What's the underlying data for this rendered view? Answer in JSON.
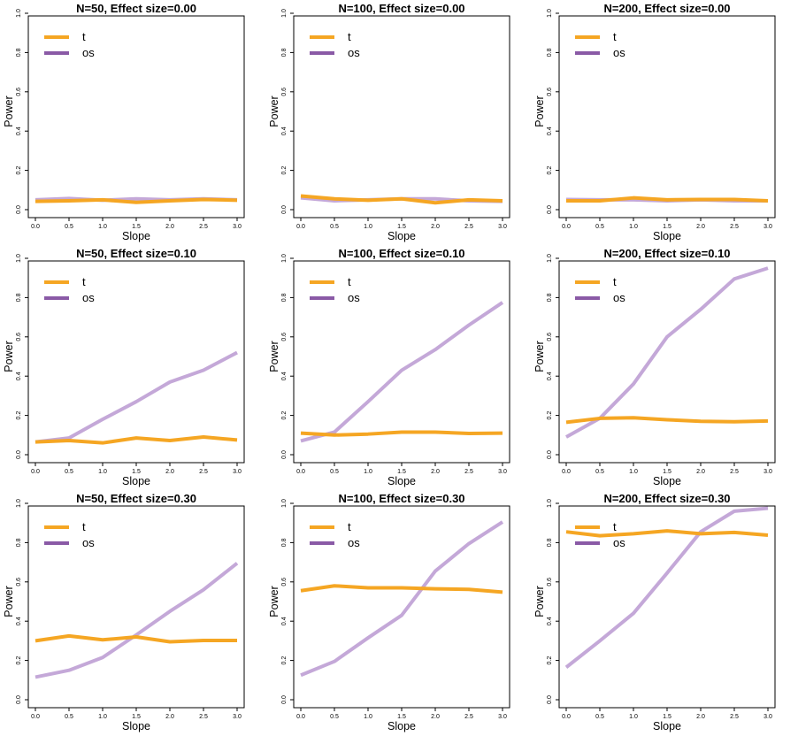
{
  "colors": {
    "t": "#f5a623",
    "os": "#c4a8d8",
    "os_legend": "#8a5aa6"
  },
  "chart_data": [
    {
      "type": "line",
      "title": "N=50, Effect size=0.00",
      "xlabel": "Slope",
      "ylabel": "Power",
      "xlim": [
        0,
        3
      ],
      "ylim": [
        0,
        1
      ],
      "xticks": [
        "0.0",
        "0.5",
        "1.0",
        "1.5",
        "2.0",
        "2.5",
        "3.0"
      ],
      "yticks": [
        "0.0",
        "0.2",
        "0.4",
        "0.6",
        "0.8",
        "1.0"
      ],
      "x": [
        0,
        0.5,
        1,
        1.5,
        2,
        2.5,
        3
      ],
      "legend_position": "top-left",
      "series": [
        {
          "name": "t",
          "values": [
            0.042,
            0.045,
            0.05,
            0.037,
            0.045,
            0.052,
            0.048
          ]
        },
        {
          "name": "os",
          "values": [
            0.05,
            0.057,
            0.048,
            0.055,
            0.05,
            0.055,
            0.05
          ]
        }
      ]
    },
    {
      "type": "line",
      "title": "N=100, Effect size=0.00",
      "xlabel": "Slope",
      "ylabel": "Power",
      "xlim": [
        0,
        3
      ],
      "ylim": [
        0,
        1
      ],
      "xticks": [
        "0.0",
        "0.5",
        "1.0",
        "1.5",
        "2.0",
        "2.5",
        "3.0"
      ],
      "yticks": [
        "0.0",
        "0.2",
        "0.4",
        "0.6",
        "0.8",
        "1.0"
      ],
      "x": [
        0,
        0.5,
        1,
        1.5,
        2,
        2.5,
        3
      ],
      "legend_position": "top-left",
      "series": [
        {
          "name": "t",
          "values": [
            0.07,
            0.055,
            0.048,
            0.055,
            0.035,
            0.05,
            0.045
          ]
        },
        {
          "name": "os",
          "values": [
            0.06,
            0.045,
            0.05,
            0.055,
            0.055,
            0.045,
            0.042
          ]
        }
      ]
    },
    {
      "type": "line",
      "title": "N=200, Effect size=0.00",
      "xlabel": "Slope",
      "ylabel": "Power",
      "xlim": [
        0,
        3
      ],
      "ylim": [
        0,
        1
      ],
      "xticks": [
        "0.0",
        "0.5",
        "1.0",
        "1.5",
        "2.0",
        "2.5",
        "3.0"
      ],
      "yticks": [
        "0.0",
        "0.2",
        "0.4",
        "0.6",
        "0.8",
        "1.0"
      ],
      "x": [
        0,
        0.5,
        1,
        1.5,
        2,
        2.5,
        3
      ],
      "legend_position": "top-left",
      "series": [
        {
          "name": "t",
          "values": [
            0.045,
            0.045,
            0.06,
            0.05,
            0.052,
            0.052,
            0.045
          ]
        },
        {
          "name": "os",
          "values": [
            0.052,
            0.05,
            0.05,
            0.045,
            0.05,
            0.045,
            0.045
          ]
        }
      ]
    },
    {
      "type": "line",
      "title": "N=50, Effect size=0.10",
      "xlabel": "Slope",
      "ylabel": "Power",
      "xlim": [
        0,
        3
      ],
      "ylim": [
        0,
        1
      ],
      "xticks": [
        "0.0",
        "0.5",
        "1.0",
        "1.5",
        "2.0",
        "2.5",
        "3.0"
      ],
      "yticks": [
        "0.0",
        "0.2",
        "0.4",
        "0.6",
        "0.8",
        "1.0"
      ],
      "x": [
        0,
        0.5,
        1,
        1.5,
        2,
        2.5,
        3
      ],
      "legend_position": "top-left",
      "series": [
        {
          "name": "t",
          "values": [
            0.065,
            0.072,
            0.06,
            0.085,
            0.072,
            0.09,
            0.075
          ]
        },
        {
          "name": "os",
          "values": [
            0.065,
            0.085,
            0.18,
            0.27,
            0.37,
            0.43,
            0.52
          ]
        }
      ]
    },
    {
      "type": "line",
      "title": "N=100, Effect size=0.10",
      "xlabel": "Slope",
      "ylabel": "Power",
      "xlim": [
        0,
        3
      ],
      "ylim": [
        0,
        1
      ],
      "xticks": [
        "0.0",
        "0.5",
        "1.0",
        "1.5",
        "2.0",
        "2.5",
        "3.0"
      ],
      "yticks": [
        "0.0",
        "0.2",
        "0.4",
        "0.6",
        "0.8",
        "1.0"
      ],
      "x": [
        0,
        0.5,
        1,
        1.5,
        2,
        2.5,
        3
      ],
      "legend_position": "top-left",
      "series": [
        {
          "name": "t",
          "values": [
            0.11,
            0.1,
            0.105,
            0.115,
            0.115,
            0.108,
            0.11
          ]
        },
        {
          "name": "os",
          "values": [
            0.07,
            0.115,
            0.27,
            0.43,
            0.535,
            0.66,
            0.775
          ]
        }
      ]
    },
    {
      "type": "line",
      "title": "N=200, Effect size=0.10",
      "xlabel": "Slope",
      "ylabel": "Power",
      "xlim": [
        0,
        3
      ],
      "ylim": [
        0,
        1
      ],
      "xticks": [
        "0.0",
        "0.5",
        "1.0",
        "1.5",
        "2.0",
        "2.5",
        "3.0"
      ],
      "yticks": [
        "0.0",
        "0.2",
        "0.4",
        "0.6",
        "0.8",
        "1.0"
      ],
      "x": [
        0,
        0.5,
        1,
        1.5,
        2,
        2.5,
        3
      ],
      "legend_position": "top-left",
      "series": [
        {
          "name": "t",
          "values": [
            0.165,
            0.185,
            0.188,
            0.178,
            0.17,
            0.168,
            0.172
          ]
        },
        {
          "name": "os",
          "values": [
            0.09,
            0.185,
            0.36,
            0.6,
            0.74,
            0.895,
            0.95
          ]
        }
      ]
    },
    {
      "type": "line",
      "title": "N=50, Effect size=0.30",
      "xlabel": "Slope",
      "ylabel": "Power",
      "xlim": [
        0,
        3
      ],
      "ylim": [
        0,
        1
      ],
      "xticks": [
        "0.0",
        "0.5",
        "1.0",
        "1.5",
        "2.0",
        "2.5",
        "3.0"
      ],
      "yticks": [
        "0.0",
        "0.2",
        "0.4",
        "0.6",
        "0.8",
        "1.0"
      ],
      "x": [
        0,
        0.5,
        1,
        1.5,
        2,
        2.5,
        3
      ],
      "legend_position": "top-left",
      "series": [
        {
          "name": "t",
          "values": [
            0.3,
            0.325,
            0.305,
            0.32,
            0.295,
            0.302,
            0.302
          ]
        },
        {
          "name": "os",
          "values": [
            0.115,
            0.15,
            0.215,
            0.33,
            0.45,
            0.56,
            0.695
          ]
        }
      ]
    },
    {
      "type": "line",
      "title": "N=100, Effect size=0.30",
      "xlabel": "Slope",
      "ylabel": "Power",
      "xlim": [
        0,
        3
      ],
      "ylim": [
        0,
        1
      ],
      "xticks": [
        "0.0",
        "0.5",
        "1.0",
        "1.5",
        "2.0",
        "2.5",
        "3.0"
      ],
      "yticks": [
        "0.0",
        "0.2",
        "0.4",
        "0.6",
        "0.8",
        "1.0"
      ],
      "x": [
        0,
        0.5,
        1,
        1.5,
        2,
        2.5,
        3
      ],
      "legend_position": "top-left",
      "series": [
        {
          "name": "t",
          "values": [
            0.555,
            0.58,
            0.57,
            0.57,
            0.565,
            0.562,
            0.548
          ]
        },
        {
          "name": "os",
          "values": [
            0.125,
            0.195,
            0.315,
            0.43,
            0.655,
            0.795,
            0.905
          ]
        }
      ]
    },
    {
      "type": "line",
      "title": "N=200, Effect size=0.30",
      "xlabel": "Slope",
      "ylabel": "Power",
      "xlim": [
        0,
        3
      ],
      "ylim": [
        0,
        1
      ],
      "xticks": [
        "0.0",
        "0.5",
        "1.0",
        "1.5",
        "2.0",
        "2.5",
        "3.0"
      ],
      "yticks": [
        "0.0",
        "0.2",
        "0.4",
        "0.6",
        "0.8",
        "1.0"
      ],
      "x": [
        0,
        0.5,
        1,
        1.5,
        2,
        2.5,
        3
      ],
      "legend_position": "top-left",
      "series": [
        {
          "name": "t",
          "values": [
            0.855,
            0.835,
            0.845,
            0.86,
            0.845,
            0.852,
            0.838
          ]
        },
        {
          "name": "os",
          "values": [
            0.165,
            0.3,
            0.44,
            0.645,
            0.855,
            0.96,
            0.975
          ]
        }
      ]
    }
  ]
}
